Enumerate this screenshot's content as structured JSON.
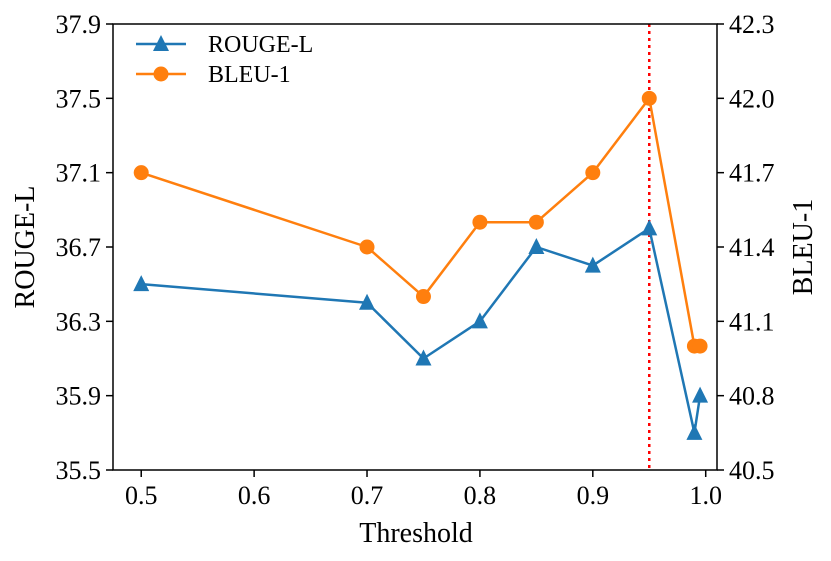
{
  "chart_data": {
    "type": "line",
    "x": [
      0.5,
      0.7,
      0.75,
      0.8,
      0.85,
      0.9,
      0.95,
      0.99,
      0.995
    ],
    "xlabel": "Threshold",
    "xlim": [
      0.475,
      1.01
    ],
    "xticks": [
      "0.5",
      "0.6",
      "0.7",
      "0.8",
      "0.9",
      "1.0"
    ],
    "y_left": {
      "label": "ROUGE-L",
      "lim": [
        35.5,
        37.9
      ],
      "ticks": [
        "35.5",
        "35.9",
        "36.3",
        "36.7",
        "37.1",
        "37.5",
        "37.9"
      ]
    },
    "y_right": {
      "label": "BLEU-1",
      "lim": [
        40.5,
        42.3
      ],
      "ticks": [
        "40.5",
        "40.8",
        "41.1",
        "41.4",
        "41.7",
        "42.0",
        "42.3"
      ]
    },
    "series": [
      {
        "name": "ROUGE-L",
        "axis": "left",
        "color": "#1f77b4",
        "marker": "triangle",
        "values": [
          36.5,
          36.4,
          36.1,
          36.3,
          36.7,
          36.6,
          36.8,
          35.7,
          35.9
        ]
      },
      {
        "name": "BLEU-1",
        "axis": "right",
        "color": "#ff7f0e",
        "marker": "circle",
        "values": [
          41.7,
          41.4,
          41.2,
          41.5,
          41.5,
          41.7,
          42.0,
          41.0,
          41.0
        ]
      }
    ],
    "vline": {
      "x": 0.95,
      "color": "#ff0000",
      "style": "dotted"
    },
    "legend": "top-left"
  }
}
